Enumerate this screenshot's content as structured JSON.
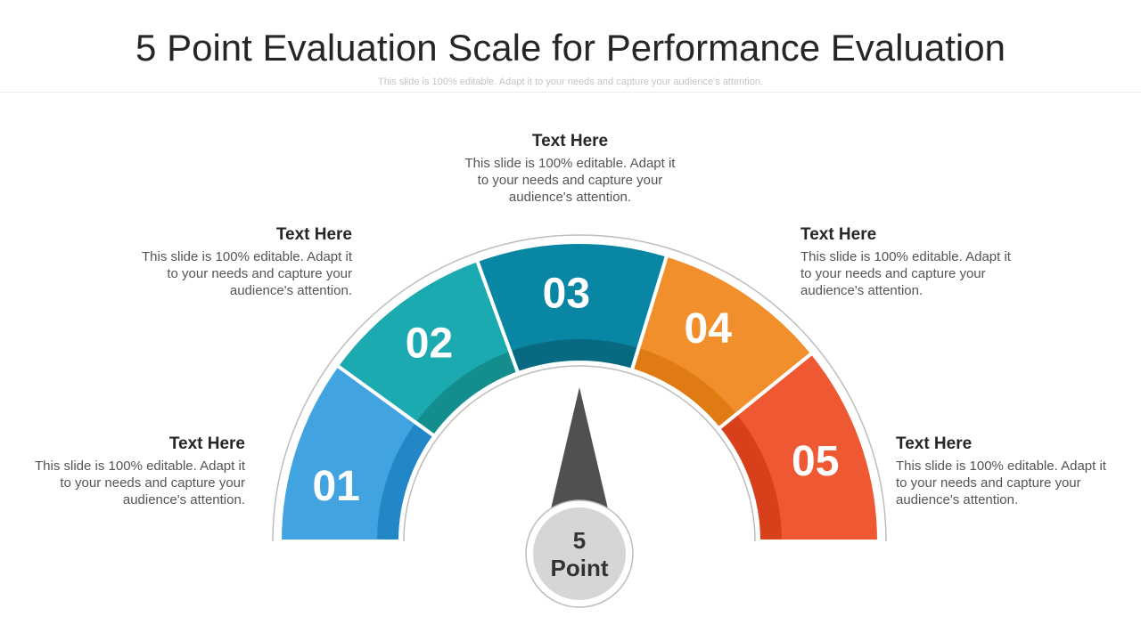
{
  "title": "5 Point Evaluation Scale for Performance Evaluation",
  "subtitle": "This slide is 100% editable. Adapt it to your needs and capture your audience's attention.",
  "segments": [
    {
      "number": "01",
      "color": "#41A3DF",
      "inner_color": "#2287C7",
      "heading": "Text Here",
      "body": "This slide is 100% editable. Adapt it to your needs and capture your audience's attention."
    },
    {
      "number": "02",
      "color": "#1AAAB0",
      "inner_color": "#148D8F",
      "heading": "Text Here",
      "body": "This slide is 100% editable. Adapt it to your needs and capture your audience's attention."
    },
    {
      "number": "03",
      "color": "#0A86A5",
      "inner_color": "#076A80",
      "heading": "Text Here",
      "body": "This slide is 100% editable. Adapt it to your needs and capture your audience's attention."
    },
    {
      "number": "04",
      "color": "#F28F2D",
      "inner_color": "#E07A12",
      "heading": "Text Here",
      "body": "This slide is 100% editable. Adapt it to your needs and capture your audience's attention."
    },
    {
      "number": "05",
      "color": "#EE5833",
      "inner_color": "#D8401C",
      "heading": "Text Here",
      "body": "This slide is 100% editable. Adapt it to your needs and capture your audience's attention."
    }
  ],
  "center": {
    "line1": "5",
    "line2": "Point"
  },
  "colors": {
    "needle": "#505050",
    "hub": "#D6D6D6",
    "outline": "#BDBDBD"
  }
}
